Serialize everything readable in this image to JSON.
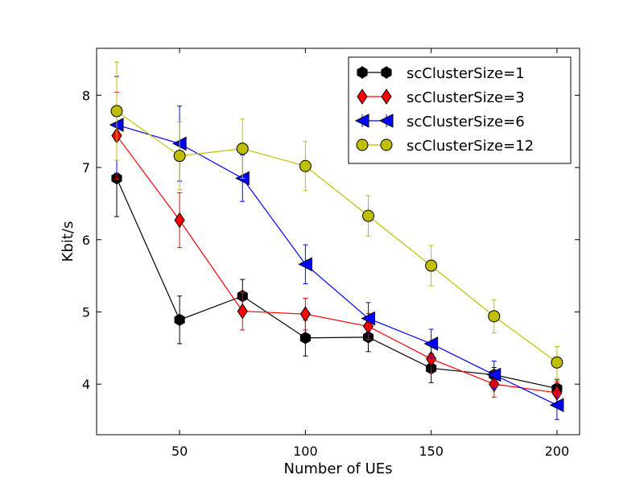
{
  "chart_data": {
    "type": "line",
    "xlabel": "Number of UEs",
    "ylabel": "Kbit/s",
    "xlim": [
      17,
      209
    ],
    "ylim": [
      3.3,
      8.65
    ],
    "xticks": [
      50,
      100,
      150,
      200
    ],
    "yticks": [
      4,
      5,
      6,
      7,
      8
    ],
    "grid": false,
    "legend_position": "top-right",
    "x": [
      25,
      50,
      75,
      100,
      125,
      150,
      175,
      200
    ],
    "series": [
      {
        "name": "scClusterSize=1",
        "color": "#000000",
        "marker": "hexagon",
        "values": [
          6.85,
          4.89,
          5.22,
          4.64,
          4.65,
          4.22,
          4.13,
          3.94
        ],
        "errors": [
          0.53,
          0.33,
          0.23,
          0.25,
          0.2,
          0.2,
          0.1,
          0.12
        ]
      },
      {
        "name": "scClusterSize=3",
        "color": "#ff0000",
        "marker": "diamond",
        "values": [
          7.44,
          6.27,
          5.01,
          4.97,
          4.8,
          4.35,
          4.0,
          3.88
        ],
        "errors": [
          0.6,
          0.38,
          0.26,
          0.22,
          0.18,
          0.2,
          0.18,
          0.15
        ]
      },
      {
        "name": "scClusterSize=6",
        "color": "#0000ff",
        "marker": "triangle-left",
        "values": [
          7.59,
          7.33,
          6.85,
          5.66,
          4.91,
          4.56,
          4.13,
          3.71
        ],
        "errors": [
          0.67,
          0.52,
          0.32,
          0.27,
          0.22,
          0.2,
          0.19,
          0.2
        ]
      },
      {
        "name": "scClusterSize=12",
        "color": "#bfbf00",
        "marker": "circle",
        "values": [
          7.78,
          7.16,
          7.26,
          7.02,
          6.33,
          5.64,
          4.94,
          4.3
        ],
        "errors": [
          0.68,
          0.47,
          0.41,
          0.34,
          0.28,
          0.28,
          0.23,
          0.22
        ]
      }
    ]
  }
}
